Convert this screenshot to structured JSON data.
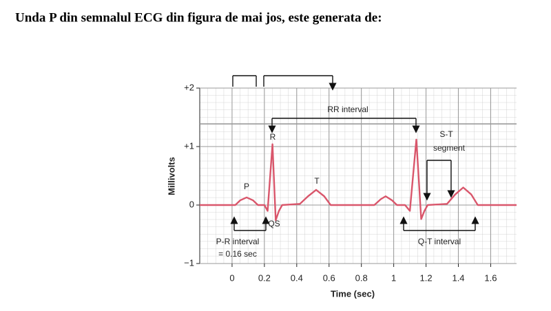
{
  "question": "Unda P din semnalul ECG din figura de mai jos, este generata de:",
  "chart_data": {
    "type": "line",
    "x_label": "Time (sec)",
    "y_label": "Millivolts",
    "x": [
      -0.2,
      0.02,
      0.05,
      0.09,
      0.13,
      0.16,
      0.2,
      0.22,
      0.25,
      0.27,
      0.29,
      0.31,
      0.42,
      0.47,
      0.52,
      0.57,
      0.61,
      0.88,
      0.92,
      0.95,
      0.99,
      1.02,
      1.07,
      1.1,
      1.14,
      1.17,
      1.19,
      1.21,
      1.33,
      1.38,
      1.43,
      1.48,
      1.52,
      1.76
    ],
    "series": [
      {
        "color": "#d9566b",
        "values": [
          0,
          0,
          0.08,
          0.13,
          0.08,
          0,
          0,
          -0.1,
          1.04,
          -0.26,
          -0.1,
          0,
          0.02,
          0.15,
          0.26,
          0.15,
          0,
          0,
          0.1,
          0.15,
          0.08,
          0,
          0,
          -0.1,
          1.12,
          -0.24,
          -0.1,
          0,
          0.02,
          0.18,
          0.3,
          0.18,
          0,
          0
        ]
      }
    ],
    "xlim": [
      -0.2,
      1.76
    ],
    "ylim": [
      -1,
      2
    ],
    "xticks": [
      0,
      0.2,
      0.4,
      0.6,
      0.8,
      1.0,
      1.2,
      1.4,
      1.6
    ],
    "yticks": [
      {
        "value": -1,
        "label": "−1"
      },
      0,
      {
        "value": 1,
        "label": "+1"
      },
      {
        "value": 2,
        "label": "+2"
      }
    ],
    "grid": true,
    "annotations": [
      "R",
      "P",
      "T",
      "QS",
      "RR interval",
      "S-T",
      "segment",
      "P-R interval",
      "= 0.16 sec",
      "Q-T interval"
    ]
  }
}
